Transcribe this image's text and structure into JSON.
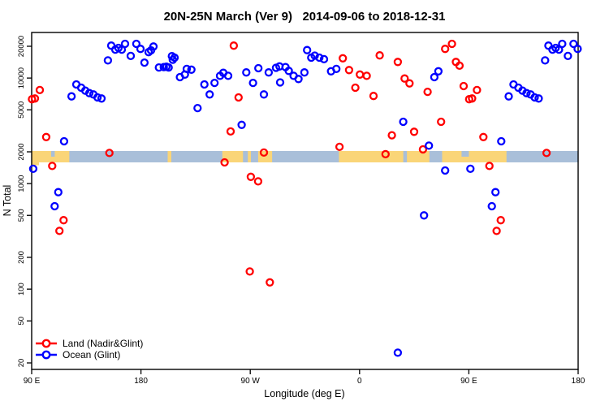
{
  "title": "20N-25N March (Ver 9)   2014-09-06 to 2018-12-31",
  "axes": {
    "x": {
      "label": "Longitude (deg E)",
      "range_continuous_deg": [
        90,
        540
      ],
      "ticks": [
        {
          "pos": 90,
          "label": "90 E"
        },
        {
          "pos": 180,
          "label": "180"
        },
        {
          "pos": 270,
          "label": "90 W"
        },
        {
          "pos": 360,
          "label": "0"
        },
        {
          "pos": 450,
          "label": "90 E"
        },
        {
          "pos": 540,
          "label": "180"
        }
      ]
    },
    "y": {
      "label": "N Total",
      "scale": "log",
      "ticks": [
        20,
        50,
        100,
        200,
        500,
        1000,
        2000,
        5000,
        10000,
        20000
      ],
      "range": [
        17,
        26000
      ]
    }
  },
  "legend": {
    "items": [
      {
        "label": "Land (Nadir&Glint)",
        "color": "#FF0000"
      },
      {
        "label": "Ocean (Glint)",
        "color": "#0000FF"
      }
    ]
  },
  "band": {
    "description": "20N-25N latitude strip map drawn along N=2000 line",
    "at_n_value": 2000,
    "ocean_color": "#A9BFD9",
    "land_color": "#FAD578",
    "land_segments_deg": [
      [
        90,
        121
      ],
      [
        202,
        205
      ],
      [
        247,
        264
      ],
      [
        268,
        270.5
      ],
      [
        276.5,
        288
      ],
      [
        343,
        396
      ],
      [
        399,
        417.5
      ],
      [
        428,
        481
      ]
    ],
    "ocean_notches_top_deg": [
      [
        444,
        450
      ],
      [
        106,
        109
      ]
    ],
    "land_extra_below_deg": [
      [
        90,
        96
      ]
    ]
  },
  "chart_data": {
    "type": "scatter",
    "title": "20N-25N March (Ver 9)   2014-09-06 to 2018-12-31",
    "xlabel": "Longitude (deg E)",
    "ylabel": "N Total",
    "x_axis_wraps": "axis runs 90E, 180, 90W, 0, 90E, 180 (points 90E-180E drawn twice)",
    "marker": "open-circle",
    "series": [
      {
        "name": "Land (Nadir&Glint)",
        "color": "#FF0000",
        "points": [
          [
            90.3,
            6300
          ],
          [
            92.7,
            6400
          ],
          [
            96.7,
            7700
          ],
          [
            102,
            2760
          ],
          [
            106.9,
            1470
          ],
          [
            112.9,
            356
          ],
          [
            116.3,
            450
          ],
          [
            154,
            1950
          ],
          [
            248.9,
            1590
          ],
          [
            253.8,
            3120
          ],
          [
            256.4,
            20300
          ],
          [
            260.4,
            6550
          ],
          [
            269.6,
            147
          ],
          [
            270.5,
            1160
          ],
          [
            276.5,
            1050
          ],
          [
            281.2,
            1970
          ],
          [
            286.1,
            116
          ],
          [
            343.5,
            2230
          ],
          [
            346.2,
            15400
          ],
          [
            351.4,
            11900
          ],
          [
            356.5,
            8100
          ],
          [
            360.3,
            10800
          ],
          [
            365.9,
            10500
          ],
          [
            371.5,
            6760
          ],
          [
            376.6,
            16400
          ],
          [
            381.4,
            1900
          ],
          [
            386.6,
            2870
          ],
          [
            391.5,
            14200
          ],
          [
            397.1,
            9900
          ],
          [
            401.1,
            8900
          ],
          [
            404.9,
            3100
          ],
          [
            412.2,
            2110
          ],
          [
            416,
            7400
          ],
          [
            427.1,
            3850
          ],
          [
            430.5,
            18900
          ],
          [
            436.1,
            21100
          ],
          [
            439.4,
            14200
          ],
          [
            442.3,
            13100
          ],
          [
            445.7,
            8400
          ],
          [
            450.3,
            6300
          ],
          [
            452.7,
            6400
          ],
          [
            456.7,
            7700
          ],
          [
            462,
            2760
          ],
          [
            466.9,
            1470
          ],
          [
            472.9,
            356
          ],
          [
            476.3,
            450
          ],
          [
            514,
            1950
          ]
        ]
      },
      {
        "name": "Ocean (Glint)",
        "color": "#0000FF",
        "points": [
          [
            91.3,
            1380
          ],
          [
            108.9,
            610
          ],
          [
            111.9,
            830
          ],
          [
            116.7,
            2520
          ],
          [
            122.8,
            6700
          ],
          [
            126.8,
            8700
          ],
          [
            130.8,
            8100
          ],
          [
            134.1,
            7600
          ],
          [
            137.5,
            7200
          ],
          [
            140.8,
            7000
          ],
          [
            144.2,
            6550
          ],
          [
            147.5,
            6400
          ],
          [
            152.8,
            14700
          ],
          [
            155.5,
            20300
          ],
          [
            158.9,
            18600
          ],
          [
            161.5,
            19300
          ],
          [
            164.2,
            18600
          ],
          [
            166.9,
            21100
          ],
          [
            171.6,
            16200
          ],
          [
            176.2,
            21100
          ],
          [
            179.6,
            18900
          ],
          [
            182.9,
            14000
          ],
          [
            186.3,
            17600
          ],
          [
            188.3,
            18300
          ],
          [
            190.3,
            19900
          ],
          [
            194.8,
            12600
          ],
          [
            198.8,
            12700
          ],
          [
            200.9,
            12800
          ],
          [
            202.8,
            12600
          ],
          [
            205.5,
            16100
          ],
          [
            206.2,
            14900
          ],
          [
            207.7,
            15600
          ],
          [
            212.1,
            10200
          ],
          [
            216.2,
            10800
          ],
          [
            217.7,
            12200
          ],
          [
            221.5,
            12000
          ],
          [
            226.6,
            5200
          ],
          [
            232.2,
            8700
          ],
          [
            236.6,
            7000
          ],
          [
            240.6,
            9000
          ],
          [
            245.1,
            10500
          ],
          [
            247.8,
            11200
          ],
          [
            251.8,
            10500
          ],
          [
            262.9,
            3600
          ],
          [
            266.7,
            11300
          ],
          [
            272.3,
            9000
          ],
          [
            276.7,
            12400
          ],
          [
            281.2,
            7000
          ],
          [
            285.2,
            11300
          ],
          [
            291.2,
            12500
          ],
          [
            294.1,
            12900
          ],
          [
            294.6,
            9100
          ],
          [
            299,
            12700
          ],
          [
            301.7,
            11700
          ],
          [
            305.7,
            10500
          ],
          [
            309.7,
            9800
          ],
          [
            314.6,
            11300
          ],
          [
            316.8,
            18400
          ],
          [
            320.2,
            15600
          ],
          [
            323.1,
            16300
          ],
          [
            326.9,
            15600
          ],
          [
            330.7,
            15100
          ],
          [
            336.5,
            11600
          ],
          [
            340.9,
            12200
          ],
          [
            391.5,
            25
          ],
          [
            396,
            3850
          ],
          [
            413.1,
            500
          ],
          [
            417.1,
            2290
          ],
          [
            421.6,
            10200
          ],
          [
            424.9,
            11600
          ],
          [
            430.5,
            1330
          ],
          [
            451.3,
            1380
          ],
          [
            468.9,
            610
          ],
          [
            471.9,
            830
          ],
          [
            476.7,
            2520
          ],
          [
            482.8,
            6700
          ],
          [
            486.8,
            8700
          ],
          [
            490.8,
            8100
          ],
          [
            494.1,
            7600
          ],
          [
            497.5,
            7200
          ],
          [
            500.8,
            7000
          ],
          [
            504.2,
            6550
          ],
          [
            507.5,
            6400
          ],
          [
            512.8,
            14700
          ],
          [
            515.5,
            20300
          ],
          [
            518.9,
            18600
          ],
          [
            521.5,
            19300
          ],
          [
            524.2,
            18600
          ],
          [
            526.9,
            21100
          ],
          [
            531.6,
            16200
          ],
          [
            536.2,
            21100
          ],
          [
            539.6,
            18900
          ]
        ]
      }
    ]
  }
}
